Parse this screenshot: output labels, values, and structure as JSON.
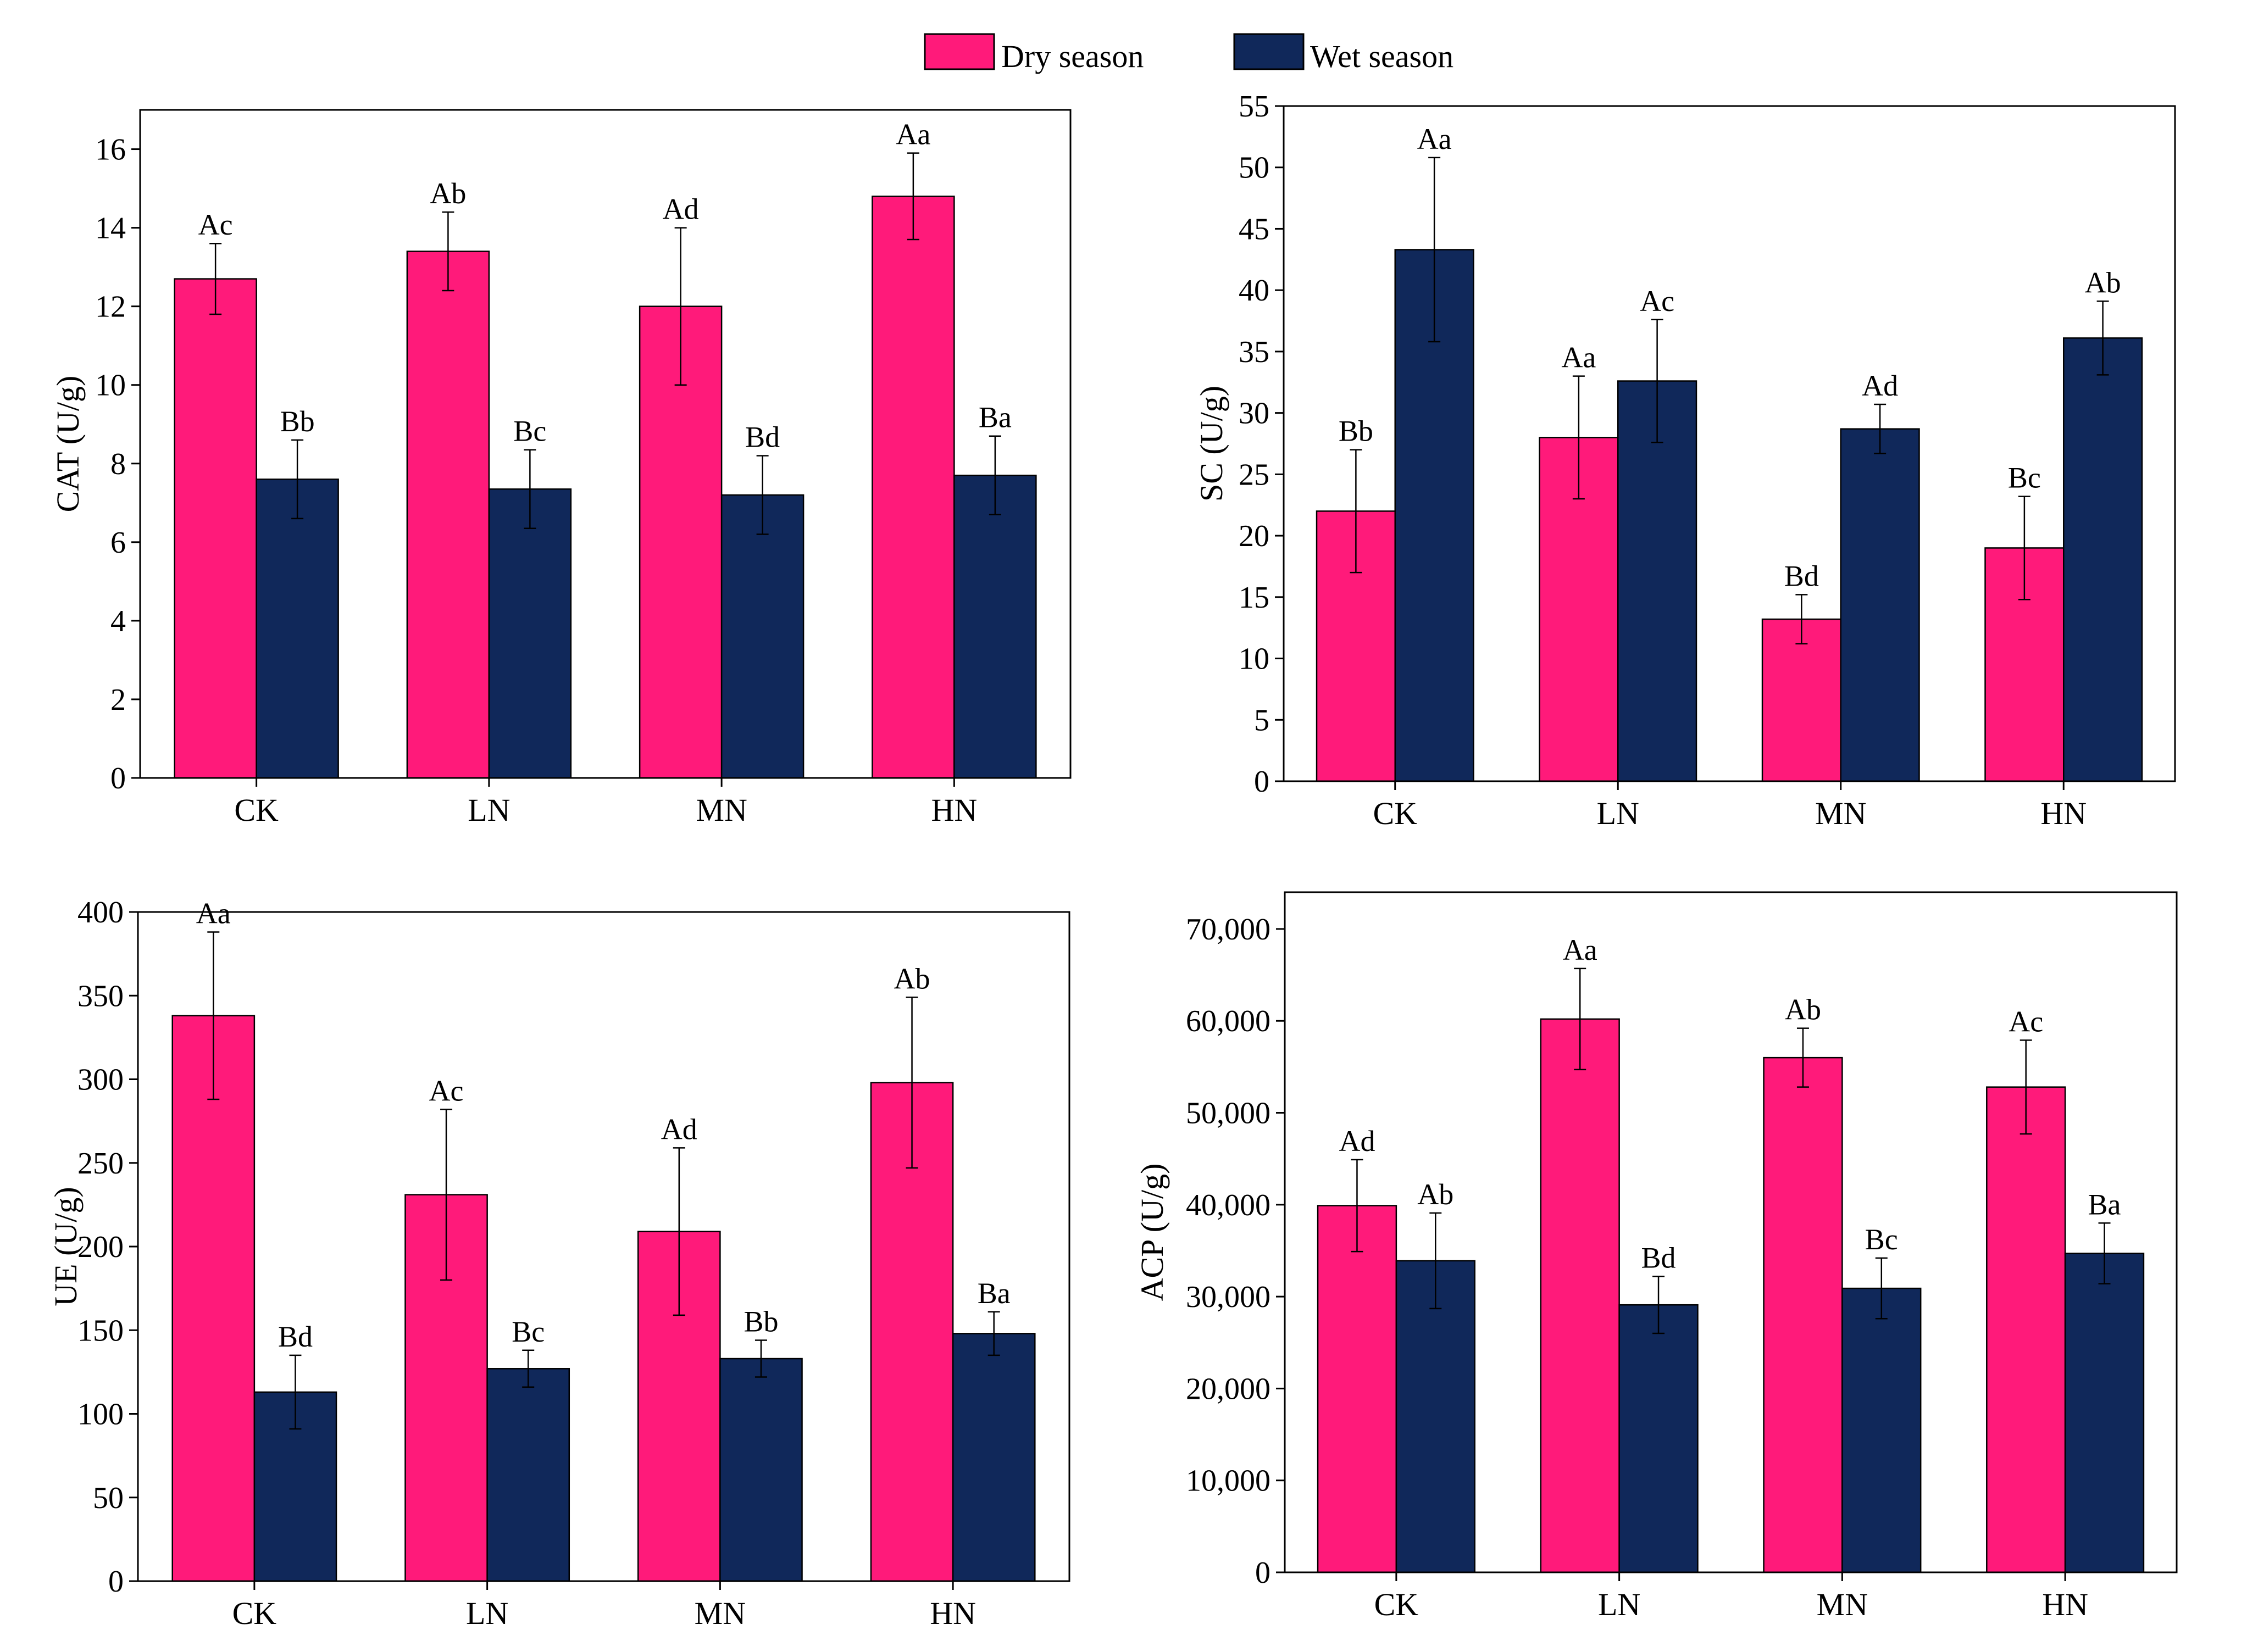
{
  "colors": {
    "dry": "#FF1A7A",
    "wet": "#10285A"
  },
  "legend": {
    "dry_label": "Dry season",
    "wet_label": "Wet season",
    "position": "top-center"
  },
  "chart_data": [
    {
      "id": "cat",
      "type": "bar",
      "ylabel": "CAT (U/g)",
      "categories": [
        "CK",
        "LN",
        "MN",
        "HN"
      ],
      "ylim": [
        0,
        17
      ],
      "yticks": [
        0,
        2,
        4,
        6,
        8,
        10,
        12,
        14,
        16
      ],
      "ytick_labels": [
        "0",
        "2",
        "4",
        "6",
        "8",
        "10",
        "12",
        "14",
        "16"
      ],
      "series": [
        {
          "name": "Dry season",
          "values": [
            12.7,
            13.4,
            12.0,
            14.8
          ],
          "errors": [
            0.9,
            1.0,
            2.0,
            1.1
          ],
          "labels": [
            "Ac",
            "Ab",
            "Ad",
            "Aa"
          ]
        },
        {
          "name": "Wet season",
          "values": [
            7.6,
            7.35,
            7.2,
            7.7
          ],
          "errors": [
            1.0,
            1.0,
            1.0,
            1.0
          ],
          "labels": [
            "Bb",
            "Bc",
            "Bd",
            "Ba"
          ]
        }
      ]
    },
    {
      "id": "sc",
      "type": "bar",
      "ylabel": "SC (U/g)",
      "categories": [
        "CK",
        "LN",
        "MN",
        "HN"
      ],
      "ylim": [
        0,
        55
      ],
      "yticks": [
        0,
        5,
        10,
        15,
        20,
        25,
        30,
        35,
        40,
        45,
        50,
        55
      ],
      "ytick_labels": [
        "0",
        "5",
        "10",
        "15",
        "20",
        "25",
        "30",
        "35",
        "40",
        "45",
        "50",
        "55"
      ],
      "series": [
        {
          "name": "Dry season",
          "values": [
            22.0,
            28.0,
            13.2,
            19.0
          ],
          "errors": [
            5.0,
            5.0,
            2.0,
            4.2
          ],
          "labels": [
            "Bb",
            "Aa",
            "Bd",
            "Bc"
          ]
        },
        {
          "name": "Wet season",
          "values": [
            43.3,
            32.6,
            28.7,
            36.1
          ],
          "errors": [
            7.5,
            5.0,
            2.0,
            3.0
          ],
          "labels": [
            "Aa",
            "Ac",
            "Ad",
            "Ab"
          ]
        }
      ]
    },
    {
      "id": "ue",
      "type": "bar",
      "ylabel": "UE (U/g)",
      "categories": [
        "CK",
        "LN",
        "MN",
        "HN"
      ],
      "ylim": [
        0,
        400
      ],
      "yticks": [
        0,
        50,
        100,
        150,
        200,
        250,
        300,
        350,
        400
      ],
      "ytick_labels": [
        "0",
        "50",
        "100",
        "150",
        "200",
        "250",
        "300",
        "350",
        "400"
      ],
      "series": [
        {
          "name": "Dry season",
          "values": [
            338,
            231,
            209,
            298
          ],
          "errors": [
            50,
            51,
            50,
            51
          ],
          "labels": [
            "Aa",
            "Ac",
            "Ad",
            "Ab"
          ]
        },
        {
          "name": "Wet season",
          "values": [
            113,
            127,
            133,
            148
          ],
          "errors": [
            22,
            11,
            11,
            13
          ],
          "labels": [
            "Bd",
            "Bc",
            "Bb",
            "Ba"
          ]
        }
      ]
    },
    {
      "id": "acp",
      "type": "bar",
      "ylabel": "ACP (U/g)",
      "categories": [
        "CK",
        "LN",
        "MN",
        "HN"
      ],
      "ylim": [
        0,
        74000
      ],
      "yticks": [
        0,
        10000,
        20000,
        30000,
        40000,
        50000,
        60000,
        70000
      ],
      "ytick_labels": [
        "0",
        "10,000",
        "20,000",
        "30,000",
        "40,000",
        "50,000",
        "60,000",
        "70,000"
      ],
      "series": [
        {
          "name": "Dry season",
          "values": [
            39900,
            60200,
            56000,
            52800
          ],
          "errors": [
            5000,
            5500,
            3200,
            5100
          ],
          "labels": [
            "Ad",
            "Aa",
            "Ab",
            "Ac"
          ]
        },
        {
          "name": "Wet season",
          "values": [
            33900,
            29100,
            30900,
            34700
          ],
          "errors": [
            5200,
            3100,
            3300,
            3300
          ],
          "labels": [
            "Ab",
            "Bd",
            "Bc",
            "Ba"
          ]
        }
      ]
    }
  ]
}
